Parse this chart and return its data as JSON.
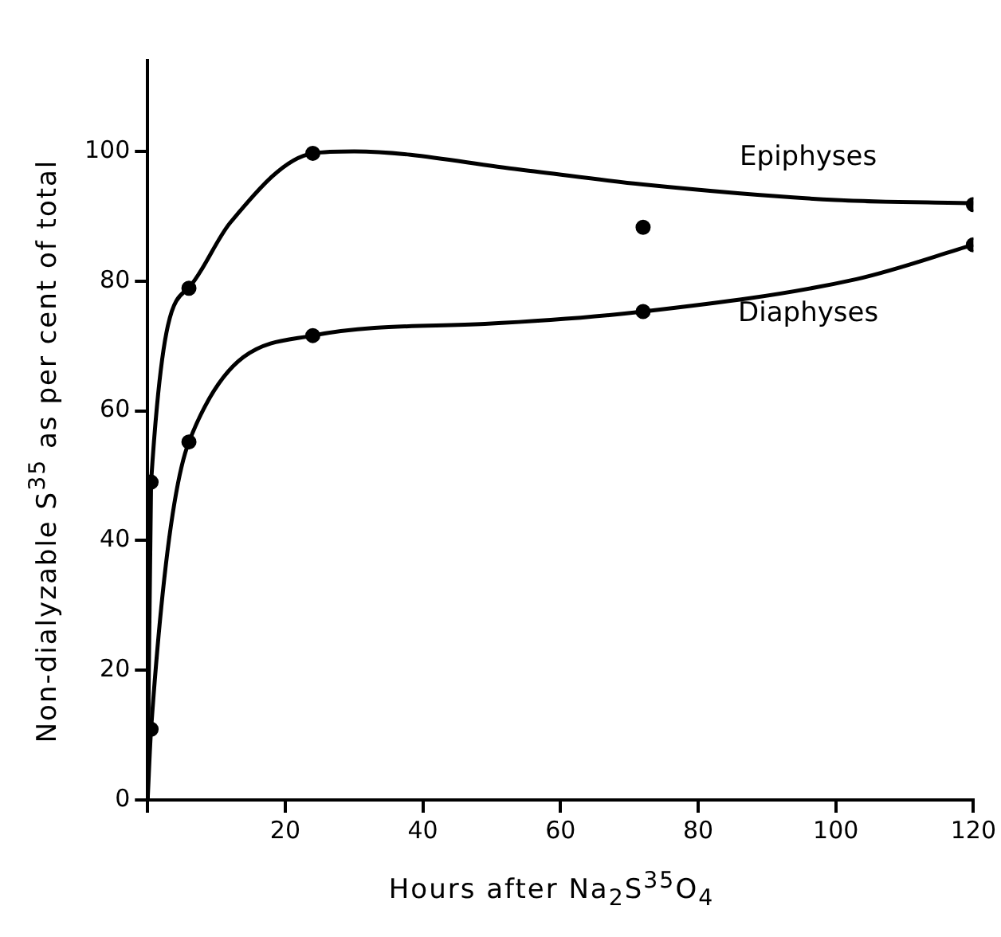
{
  "chart_data": {
    "type": "line",
    "xlabel": "Hours after Na$_{2}$S$^{35}$O$_{4}$",
    "ylabel": "Non-dialyzable S$^{35}$ as per cent of total",
    "xlim": [
      0,
      120
    ],
    "xticks": [
      {
        "value": 0,
        "label": null
      },
      20,
      40,
      60,
      80,
      100,
      120
    ],
    "ylim": [
      0,
      114
    ],
    "yticks": [
      0,
      20,
      40,
      60,
      80,
      100
    ],
    "grid": false,
    "legend": false,
    "series": [
      {
        "name": "Epiphyses",
        "color": "#000000",
        "marker": "none",
        "x": [
          0,
          0.5,
          6,
          12,
          24,
          30,
          54,
          72,
          100,
          120
        ],
        "values": [
          0,
          49,
          79,
          89,
          99.7,
          100,
          97.2,
          94.9,
          92.5,
          92
        ]
      },
      {
        "name": "Diaphyses",
        "color": "#000000",
        "marker": "none",
        "x": [
          0,
          0.5,
          6,
          24,
          49,
          72,
          103,
          120
        ],
        "values": [
          0,
          10.9,
          55.2,
          71.6,
          73.4,
          75.3,
          80.3,
          85.6
        ]
      },
      {
        "type": "scatter",
        "color": "#000000",
        "marker": "circle",
        "x": [
          0.5,
          6,
          24,
          72,
          120
        ],
        "values": [
          49,
          78.9,
          99.7,
          88.3,
          91.8
        ]
      },
      {
        "type": "scatter",
        "color": "#000000",
        "marker": "circle",
        "x": [
          0.5,
          6,
          24,
          72,
          120
        ],
        "values": [
          10.9,
          55.2,
          71.6,
          75.3,
          85.6
        ]
      }
    ]
  }
}
